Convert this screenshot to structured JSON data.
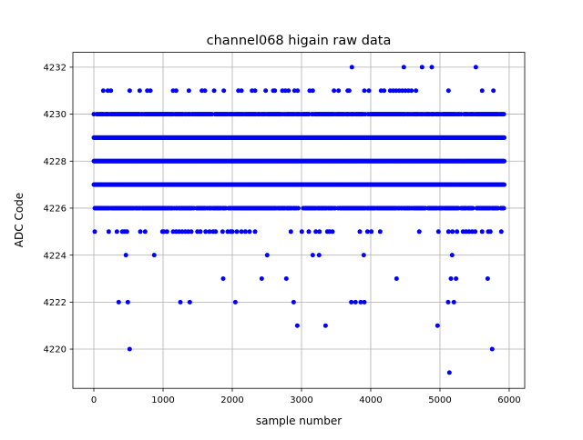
{
  "chart_data": {
    "type": "scatter",
    "title": "channel068 higain raw data",
    "xlabel": "sample number",
    "ylabel": "ADC Code",
    "xlim": [
      -303,
      6224
    ],
    "ylim": [
      4218.33,
      4232.63
    ],
    "xticks": [
      0,
      1000,
      2000,
      3000,
      4000,
      5000,
      6000
    ],
    "yticks": [
      4220,
      4222,
      4224,
      4226,
      4228,
      4230,
      4232
    ],
    "grid": true,
    "marker_color": "#0000ff",
    "dense_levels": [
      {
        "y": 4226,
        "x_range": [
          0,
          5930
        ]
      },
      {
        "y": 4227,
        "x_range": [
          0,
          5930
        ]
      },
      {
        "y": 4228,
        "x_range": [
          0,
          5930
        ]
      },
      {
        "y": 4229,
        "x_range": [
          0,
          5930
        ]
      },
      {
        "y": 4230,
        "x_range": [
          0,
          5930
        ]
      }
    ],
    "sparse_points": [
      {
        "y": 4232,
        "x": [
          3728,
          4478,
          4741,
          4882,
          5518
        ]
      },
      {
        "y": 4231,
        "x": [
          136,
          202,
          246,
          518,
          662,
          772,
          816,
          1145,
          1189,
          1373,
          1561,
          1605,
          1737,
          1877,
          2088,
          2132,
          2285,
          2329,
          2482,
          2592,
          2614,
          2724,
          2768,
          2811,
          2899,
          2943,
          3118,
          3162,
          3469,
          3535,
          3667,
          3689,
          3908,
          3974,
          4149,
          4193,
          4281,
          4325,
          4368,
          4412,
          4456,
          4500,
          4544,
          4588,
          4653,
          5123,
          5609,
          5772
        ]
      },
      {
        "y": 4225,
        "x": [
          13,
          215,
          333,
          412,
          443,
          478,
          671,
          741,
          991,
          1013,
          1057,
          1145,
          1189,
          1232,
          1276,
          1320,
          1364,
          1408,
          1496,
          1539,
          1614,
          1671,
          1724,
          1759,
          1860,
          1934,
          1978,
          2000,
          2066,
          2132,
          2189,
          2250,
          2329,
          2846,
          3004,
          3105,
          3206,
          3259,
          3373,
          3404,
          3447,
          3842,
          3952,
          4009,
          4136,
          4701,
          4978,
          5123,
          5180,
          5246,
          5333,
          5377,
          5421,
          5465,
          5509,
          5609,
          5697,
          5728,
          5886
        ]
      },
      {
        "y": 4224,
        "x": [
          463,
          872,
          2504,
          3162,
          3254,
          3899,
          5175
        ]
      },
      {
        "y": 4223,
        "x": [
          1868,
          2425,
          2780,
          4373,
          5158,
          5232,
          5689
        ]
      },
      {
        "y": 4222,
        "x": [
          359,
          491,
          1250,
          1386,
          2044,
          2886,
          3719,
          3780,
          3855,
          3908,
          5118,
          5201
        ]
      },
      {
        "y": 4221,
        "x": [
          2939,
          3347,
          4965
        ]
      },
      {
        "y": 4220,
        "x": [
          517,
          5754
        ]
      },
      {
        "y": 4219,
        "x": [
          5136
        ]
      }
    ]
  }
}
